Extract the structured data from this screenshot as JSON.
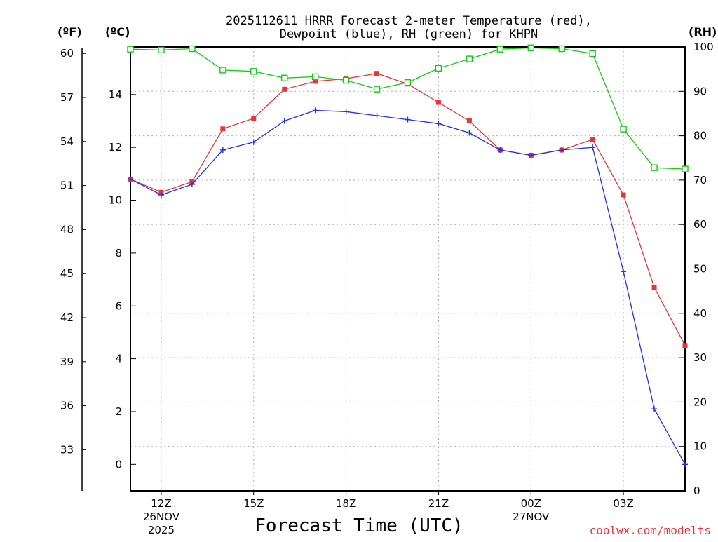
{
  "title": {
    "line1": "2025112611 HRRR Forecast 2-meter Temperature (red),",
    "line2": "Dewpoint (blue), RH (green) for KHPN"
  },
  "units": {
    "fahrenheit": "(ºF)",
    "celsius": "(ºC)",
    "rh": "(RH)"
  },
  "footer": {
    "credit": "coolwx.com/modelts"
  },
  "colors": {
    "temperature": "#e8343a",
    "dewpoint": "#2233dd",
    "rh": "#11cc11",
    "grid": "#b0b0b0",
    "axis": "#000000"
  },
  "chart_data": {
    "type": "line",
    "title": "2025112611 HRRR Forecast 2-meter Temperature (red), Dewpoint (blue), RH (green) for KHPN",
    "xlabel": "Forecast Time (UTC)",
    "x_hours": [
      11,
      12,
      13,
      14,
      15,
      16,
      17,
      18,
      19,
      20,
      21,
      22,
      23,
      24,
      25,
      26,
      27,
      28,
      29
    ],
    "xlim": [
      11,
      29
    ],
    "x_ticks": [
      {
        "hour": 12,
        "label": "12Z",
        "sub1": "26NOV",
        "sub2": "2025"
      },
      {
        "hour": 15,
        "label": "15Z",
        "sub1": "",
        "sub2": ""
      },
      {
        "hour": 18,
        "label": "18Z",
        "sub1": "",
        "sub2": ""
      },
      {
        "hour": 21,
        "label": "21Z",
        "sub1": "",
        "sub2": ""
      },
      {
        "hour": 24,
        "label": "00Z",
        "sub1": "27NOV",
        "sub2": ""
      },
      {
        "hour": 27,
        "label": "03Z",
        "sub1": "",
        "sub2": ""
      }
    ],
    "y_celsius": {
      "lim": [
        -1,
        15.8
      ],
      "ticks": [
        0,
        2,
        4,
        6,
        8,
        10,
        12,
        14
      ]
    },
    "y_fahrenheit": {
      "ticks": [
        33,
        36,
        39,
        42,
        45,
        48,
        51,
        54,
        57,
        60
      ]
    },
    "y_rh": {
      "lim": [
        0,
        100
      ],
      "ticks": [
        0,
        10,
        20,
        30,
        40,
        50,
        60,
        70,
        80,
        90,
        100
      ]
    },
    "series": [
      {
        "name": "Temperature",
        "axis": "celsius",
        "marker": "filled-square",
        "values": [
          10.8,
          10.3,
          10.7,
          12.7,
          13.1,
          14.2,
          14.5,
          14.6,
          14.8,
          14.4,
          13.7,
          13.0,
          11.9,
          11.7,
          11.9,
          12.3,
          10.2,
          6.7,
          4.5
        ]
      },
      {
        "name": "Dewpoint",
        "axis": "celsius",
        "marker": "plus",
        "values": [
          10.8,
          10.2,
          10.6,
          11.9,
          12.2,
          13.0,
          13.4,
          13.35,
          13.2,
          13.05,
          12.9,
          12.55,
          11.9,
          11.7,
          11.9,
          12.0,
          7.3,
          2.1,
          0.0
        ]
      },
      {
        "name": "RH",
        "axis": "rh",
        "marker": "open-square",
        "values": [
          99.5,
          99.3,
          99.6,
          94.8,
          94.5,
          93.0,
          93.3,
          92.5,
          90.5,
          92.0,
          95.2,
          97.3,
          99.5,
          99.8,
          99.6,
          98.5,
          81.5,
          72.8,
          72.5
        ]
      }
    ]
  }
}
